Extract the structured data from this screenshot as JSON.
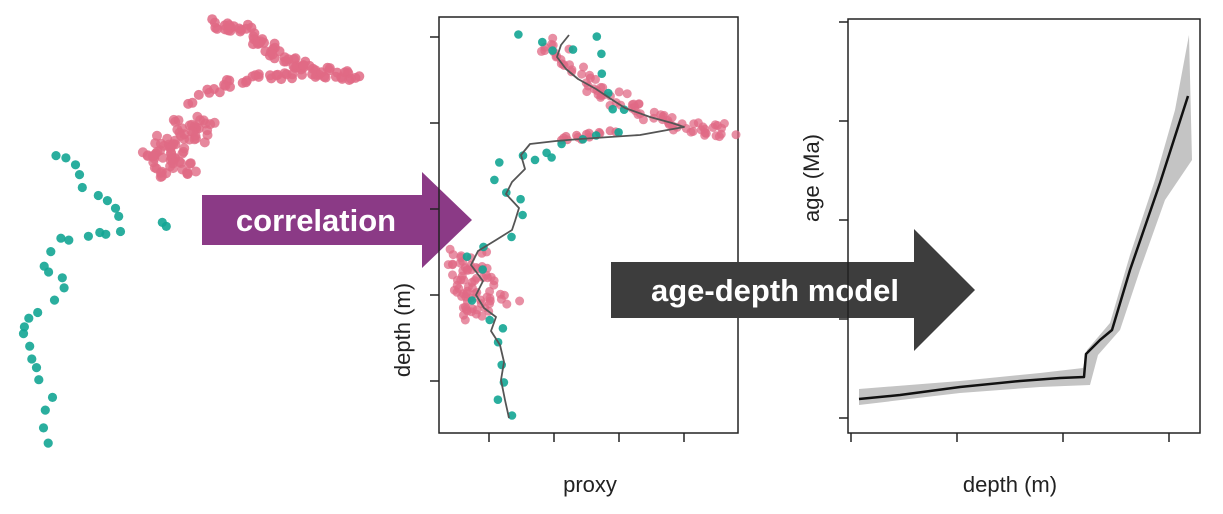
{
  "colors": {
    "pink": "#e06a85",
    "teal": "#13a594",
    "correlation_arrow": "#8b3a86",
    "model_arrow": "#3d3d3d",
    "curve": "#555555",
    "band": "#c4c4c4"
  },
  "arrows": {
    "correlation": "correlation",
    "age_depth": "age-depth model"
  },
  "proxy_panel": {
    "xlabel": "proxy",
    "ylabel": "depth (m)"
  },
  "age_panel": {
    "xlabel": "depth (m)",
    "ylabel": "age (Ma)"
  }
}
